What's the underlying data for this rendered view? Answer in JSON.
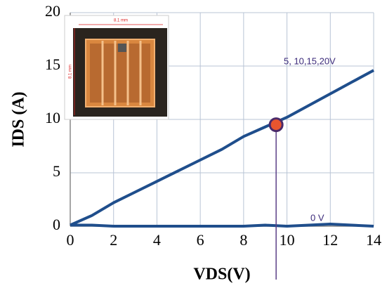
{
  "chart_data": {
    "type": "line",
    "xlabel": "VDS(V)",
    "ylabel": "IDS (A)",
    "xlim": [
      0,
      14
    ],
    "ylim": [
      0,
      20
    ],
    "xticks": [
      0,
      2,
      4,
      6,
      8,
      10,
      12,
      14
    ],
    "yticks": [
      0,
      5,
      10,
      15,
      20
    ],
    "grid": true,
    "series": [
      {
        "name": "5, 10,15,20V",
        "color": "#1f4e8c",
        "x": [
          0,
          1,
          2,
          3,
          4,
          5,
          6,
          7,
          8,
          9,
          10,
          11,
          12,
          13,
          14
        ],
        "values": [
          0.1,
          1.0,
          2.2,
          3.2,
          4.2,
          5.2,
          6.2,
          7.2,
          8.4,
          9.3,
          10.2,
          11.3,
          12.4,
          13.5,
          14.6
        ]
      },
      {
        "name": "0 V",
        "color": "#1f4e8c",
        "x": [
          0,
          1,
          2,
          4,
          6,
          8,
          9,
          10,
          11,
          12,
          13,
          14
        ],
        "values": [
          0.1,
          0.1,
          0,
          0,
          0,
          0,
          0.1,
          0,
          0.1,
          0.2,
          0.1,
          0
        ]
      }
    ],
    "highlight": {
      "x": 9.5,
      "y": 9.5,
      "color": "#e8552f"
    },
    "inset_labels": [
      "8.1 mm",
      "8.1 mm"
    ]
  }
}
